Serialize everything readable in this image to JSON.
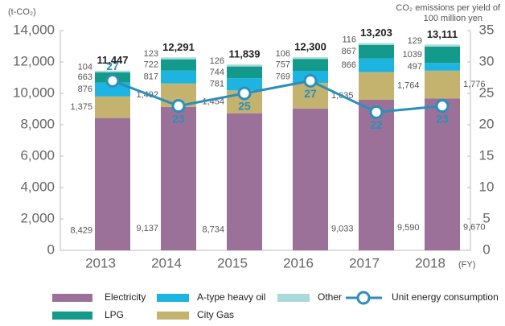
{
  "chart_data": {
    "type": "bar",
    "y_label": "(t-CO₂)",
    "y2_label_lines": [
      "CO₂ emissions per yield of",
      "100 million yen"
    ],
    "x_suffix": "(FY)",
    "categories": [
      "2013",
      "2014",
      "2015",
      "2016",
      "2017",
      "2018"
    ],
    "series": [
      {
        "name": "Electricity",
        "color": "#9b7199",
        "values": [
          8429,
          9137,
          8734,
          9033,
          9590,
          9670
        ],
        "value_labels": [
          "8,429",
          "9,137",
          "8,734",
          "9,033",
          "9,590",
          "9,670"
        ]
      },
      {
        "name": "City Gas",
        "color": "#c4b26f",
        "values": [
          1375,
          1492,
          1454,
          1635,
          1764,
          1776
        ],
        "value_labels": [
          "1,375",
          "1,492",
          "1,454",
          "1,635",
          "1,764",
          "1,776"
        ]
      },
      {
        "name": "A-type heavy oil",
        "color": "#1db4e2",
        "values": [
          876,
          817,
          781,
          769,
          866,
          497
        ]
      },
      {
        "name": "LPG",
        "color": "#139a8b",
        "values": [
          663,
          722,
          744,
          757,
          867,
          1039
        ]
      },
      {
        "name": "Other",
        "color": "#a9dad9",
        "values": [
          104,
          123,
          126,
          106,
          116,
          129
        ]
      },
      {
        "name": "Unit energy consumption",
        "type": "line",
        "axis": "y2",
        "color": "#2a8fba",
        "values": [
          27,
          23,
          25,
          27,
          22,
          23
        ]
      }
    ],
    "totals": [
      11447,
      12291,
      11839,
      12300,
      13203,
      13111
    ],
    "total_labels": [
      "11,447",
      "12,291",
      "11,839",
      "12,300",
      "13,203",
      "13,111"
    ],
    "ylim": [
      0,
      14000
    ],
    "yticks": [
      0,
      {
        "value": 2000,
        "label": "2,000"
      },
      {
        "value": 4000,
        "label": "4,000"
      },
      {
        "value": 6000,
        "label": "6,000"
      },
      {
        "value": 8000,
        "label": "8,000"
      },
      {
        "value": 10000,
        "label": "10,000"
      },
      {
        "value": 12000,
        "label": "12,000"
      },
      {
        "value": 14000,
        "label": "14,000"
      }
    ],
    "y2lim": [
      0,
      35
    ],
    "y2ticks": [
      0,
      5,
      10,
      15,
      20,
      25,
      30,
      35
    ]
  }
}
